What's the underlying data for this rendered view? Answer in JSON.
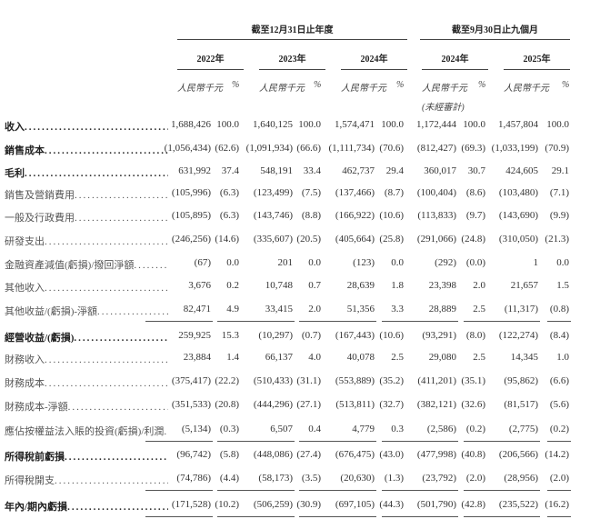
{
  "header": {
    "group_year": "截至12月31日止年度",
    "group_nine_months": "截至9月30日止九個月",
    "years": [
      "2022年",
      "2023年",
      "2024年",
      "2024年",
      "2025年"
    ],
    "unit_amount": "人民幣千元",
    "unit_pct": "%",
    "unaudited": "(未經審計)"
  },
  "rows": [
    {
      "label": "收入",
      "bold": true,
      "values": [
        "1,688,426",
        "100.0",
        "1,640,125",
        "100.0",
        "1,574,471",
        "100.0",
        "1,172,444",
        "100.0",
        "1,457,804",
        "100.0"
      ]
    },
    {
      "label": "銷售成本",
      "bold": true,
      "values": [
        "(1,056,434)",
        "(62.6)",
        "(1,091,934)",
        "(66.6)",
        "(1,111,734)",
        "(70.6)",
        "(812,427)",
        "(69.3)",
        "(1,033,199)",
        "(70.9)"
      ]
    },
    {
      "label": "毛利",
      "bold": true,
      "values": [
        "631,992",
        "37.4",
        "548,191",
        "33.4",
        "462,737",
        "29.4",
        "360,017",
        "30.7",
        "424,605",
        "29.1"
      ]
    },
    {
      "label": "銷售及營銷費用",
      "bold": false,
      "values": [
        "(105,996)",
        "(6.3)",
        "(123,499)",
        "(7.5)",
        "(137,466)",
        "(8.7)",
        "(100,404)",
        "(8.6)",
        "(103,480)",
        "(7.1)"
      ]
    },
    {
      "label": "一般及行政費用",
      "bold": false,
      "values": [
        "(105,895)",
        "(6.3)",
        "(143,746)",
        "(8.8)",
        "(166,922)",
        "(10.6)",
        "(113,833)",
        "(9.7)",
        "(143,690)",
        "(9.9)"
      ]
    },
    {
      "label": "研發支出",
      "bold": false,
      "values": [
        "(246,256)",
        "(14.6)",
        "(335,607)",
        "(20.5)",
        "(405,664)",
        "(25.8)",
        "(291,066)",
        "(24.8)",
        "(310,050)",
        "(21.3)"
      ]
    },
    {
      "label": "金融資產減值(虧損)/撥回淨額",
      "bold": false,
      "values": [
        "(67)",
        "0.0",
        "201",
        "0.0",
        "(123)",
        "0.0",
        "(292)",
        "(0.0)",
        "1",
        "0.0"
      ]
    },
    {
      "label": "其他收入",
      "bold": false,
      "values": [
        "3,676",
        "0.2",
        "10,748",
        "0.7",
        "28,639",
        "1.8",
        "23,398",
        "2.0",
        "21,657",
        "1.5"
      ]
    },
    {
      "label": "其他收益/(虧損)-淨額",
      "bold": false,
      "underline": true,
      "values": [
        "82,471",
        "4.9",
        "33,415",
        "2.0",
        "51,356",
        "3.3",
        "28,889",
        "2.5",
        "(11,317)",
        "(0.8)"
      ]
    },
    {
      "label": "經營收益/(虧損)",
      "bold": true,
      "values": [
        "259,925",
        "15.3",
        "(10,297)",
        "(0.7)",
        "(167,443)",
        "(10.6)",
        "(93,291)",
        "(8.0)",
        "(122,274)",
        "(8.4)"
      ]
    },
    {
      "label": "財務收入",
      "bold": false,
      "values": [
        "23,884",
        "1.4",
        "66,137",
        "4.0",
        "40,078",
        "2.5",
        "29,080",
        "2.5",
        "14,345",
        "1.0"
      ]
    },
    {
      "label": "財務成本",
      "bold": false,
      "values": [
        "(375,417)",
        "(22.2)",
        "(510,433)",
        "(31.1)",
        "(553,889)",
        "(35.2)",
        "(411,201)",
        "(35.1)",
        "(95,862)",
        "(6.6)"
      ]
    },
    {
      "label": "財務成本-淨額",
      "bold": false,
      "values": [
        "(351,533)",
        "(20.8)",
        "(444,296)",
        "(27.1)",
        "(513,811)",
        "(32.7)",
        "(382,121)",
        "(32.6)",
        "(81,517)",
        "(5.6)"
      ]
    },
    {
      "label": "應佔按權益法入賬的投資(虧損)/利潤",
      "bold": false,
      "underline": true,
      "values": [
        "(5,134)",
        "(0.3)",
        "6,507",
        "0.4",
        "4,779",
        "0.3",
        "(2,586)",
        "(0.2)",
        "(2,775)",
        "(0.2)"
      ]
    },
    {
      "label": "所得稅前虧損",
      "bold": true,
      "values": [
        "(96,742)",
        "(5.8)",
        "(448,086)",
        "(27.4)",
        "(676,475)",
        "(43.0)",
        "(477,998)",
        "(40.8)",
        "(206,566)",
        "(14.2)"
      ]
    },
    {
      "label": "所得稅開支",
      "bold": false,
      "underline": true,
      "values": [
        "(74,786)",
        "(4.4)",
        "(58,173)",
        "(3.5)",
        "(20,630)",
        "(1.3)",
        "(23,792)",
        "(2.0)",
        "(28,956)",
        "(2.0)"
      ]
    },
    {
      "label": "年內/期內虧損",
      "bold": true,
      "underline": true,
      "values": [
        "(171,528)",
        "(10.2)",
        "(506,259)",
        "(30.9)",
        "(697,105)",
        "(44.3)",
        "(501,790)",
        "(42.8)",
        "(235,522)",
        "(16.2)"
      ]
    }
  ]
}
